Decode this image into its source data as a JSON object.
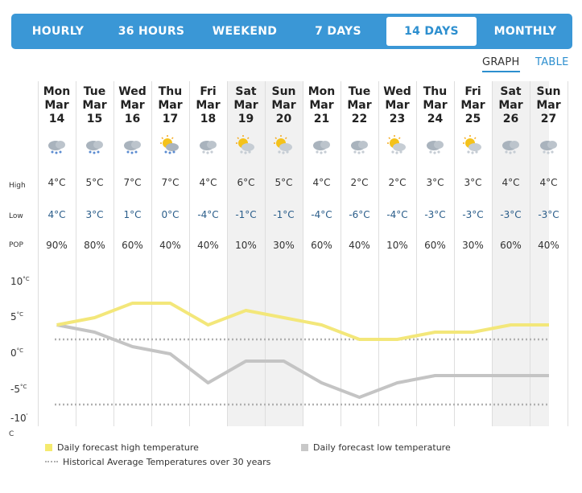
{
  "nav": {
    "tabs": [
      {
        "label": "HOURLY",
        "active": false
      },
      {
        "label": "36 HOURS",
        "active": false
      },
      {
        "label": "WEEKEND",
        "active": false
      },
      {
        "label": "7 DAYS",
        "active": false
      },
      {
        "label": "14 DAYS",
        "active": true
      },
      {
        "label": "MONTHLY",
        "active": false
      }
    ]
  },
  "view": {
    "graph_label": "GRAPH",
    "table_label": "TABLE",
    "selected": "GRAPH"
  },
  "row_labels": {
    "high": "High",
    "low": "Low",
    "pop": "POP"
  },
  "days": [
    {
      "dow": "Mon",
      "month": "Mar",
      "date": "14",
      "high": "4°C",
      "low": "4°C",
      "pop": "90%",
      "icon": "rain-icon",
      "weekend": false
    },
    {
      "dow": "Tue",
      "month": "Mar",
      "date": "15",
      "high": "5°C",
      "low": "3°C",
      "pop": "80%",
      "icon": "rain-icon",
      "weekend": false
    },
    {
      "dow": "Wed",
      "month": "Mar",
      "date": "16",
      "high": "7°C",
      "low": "1°C",
      "pop": "60%",
      "icon": "rain-icon",
      "weekend": false
    },
    {
      "dow": "Thu",
      "month": "Mar",
      "date": "17",
      "high": "7°C",
      "low": "0°C",
      "pop": "40%",
      "icon": "sun-rain-icon",
      "weekend": false
    },
    {
      "dow": "Fri",
      "month": "Mar",
      "date": "18",
      "high": "4°C",
      "low": "-4°C",
      "pop": "40%",
      "icon": "snow-icon",
      "weekend": false
    },
    {
      "dow": "Sat",
      "month": "Mar",
      "date": "19",
      "high": "6°C",
      "low": "-1°C",
      "pop": "10%",
      "icon": "sun-cloud-icon",
      "weekend": true
    },
    {
      "dow": "Sun",
      "month": "Mar",
      "date": "20",
      "high": "5°C",
      "low": "-1°C",
      "pop": "30%",
      "icon": "sun-cloud-icon",
      "weekend": true
    },
    {
      "dow": "Mon",
      "month": "Mar",
      "date": "21",
      "high": "4°C",
      "low": "-4°C",
      "pop": "60%",
      "icon": "snow-icon",
      "weekend": false
    },
    {
      "dow": "Tue",
      "month": "Mar",
      "date": "22",
      "high": "2°C",
      "low": "-6°C",
      "pop": "40%",
      "icon": "snow-icon",
      "weekend": false
    },
    {
      "dow": "Wed",
      "month": "Mar",
      "date": "23",
      "high": "2°C",
      "low": "-4°C",
      "pop": "10%",
      "icon": "sun-cloud-icon",
      "weekend": false
    },
    {
      "dow": "Thu",
      "month": "Mar",
      "date": "24",
      "high": "3°C",
      "low": "-3°C",
      "pop": "60%",
      "icon": "snow-icon",
      "weekend": false
    },
    {
      "dow": "Fri",
      "month": "Mar",
      "date": "25",
      "high": "3°C",
      "low": "-3°C",
      "pop": "30%",
      "icon": "sun-snow-icon",
      "weekend": false
    },
    {
      "dow": "Sat",
      "month": "Mar",
      "date": "26",
      "high": "4°C",
      "low": "-3°C",
      "pop": "60%",
      "icon": "snow-icon",
      "weekend": true
    },
    {
      "dow": "Sun",
      "month": "Mar",
      "date": "27",
      "high": "4°C",
      "low": "-3°C",
      "pop": "40%",
      "icon": "snow-icon",
      "weekend": true
    }
  ],
  "chart_data": {
    "type": "line",
    "x": [
      "Mon Mar 14",
      "Tue Mar 15",
      "Wed Mar 16",
      "Thu Mar 17",
      "Fri Mar 18",
      "Sat Mar 19",
      "Sun Mar 20",
      "Mon Mar 21",
      "Tue Mar 22",
      "Wed Mar 23",
      "Thu Mar 24",
      "Fri Mar 25",
      "Sat Mar 26",
      "Sun Mar 27"
    ],
    "series": [
      {
        "name": "Daily forecast high temperature",
        "values": [
          4,
          5,
          7,
          7,
          4,
          6,
          5,
          4,
          2,
          2,
          3,
          3,
          4,
          4
        ],
        "color": "#f3e77a"
      },
      {
        "name": "Daily forecast low temperature",
        "values": [
          4,
          3,
          1,
          0,
          -4,
          -1,
          -1,
          -4,
          -6,
          -4,
          -3,
          -3,
          -3,
          -3
        ],
        "color": "#c4c4c4"
      }
    ],
    "historical_average": {
      "name": "Historical Average Temperatures over 30 years",
      "high": 2,
      "low": -7,
      "color": "#b0b0b0"
    },
    "y_ticks": [
      "10",
      "5",
      "0",
      "-5",
      "-10"
    ],
    "y_tick_values": [
      10,
      5,
      0,
      -5,
      -10
    ],
    "y_unit": "°C",
    "y_unit_label": "C",
    "ylim": [
      -10,
      10
    ],
    "grid": false,
    "legend_position": "bottom"
  },
  "legend": {
    "high": "Daily forecast high temperature",
    "low": "Daily forecast low temperature",
    "hist": "Historical Average Temperatures over 30 years"
  }
}
